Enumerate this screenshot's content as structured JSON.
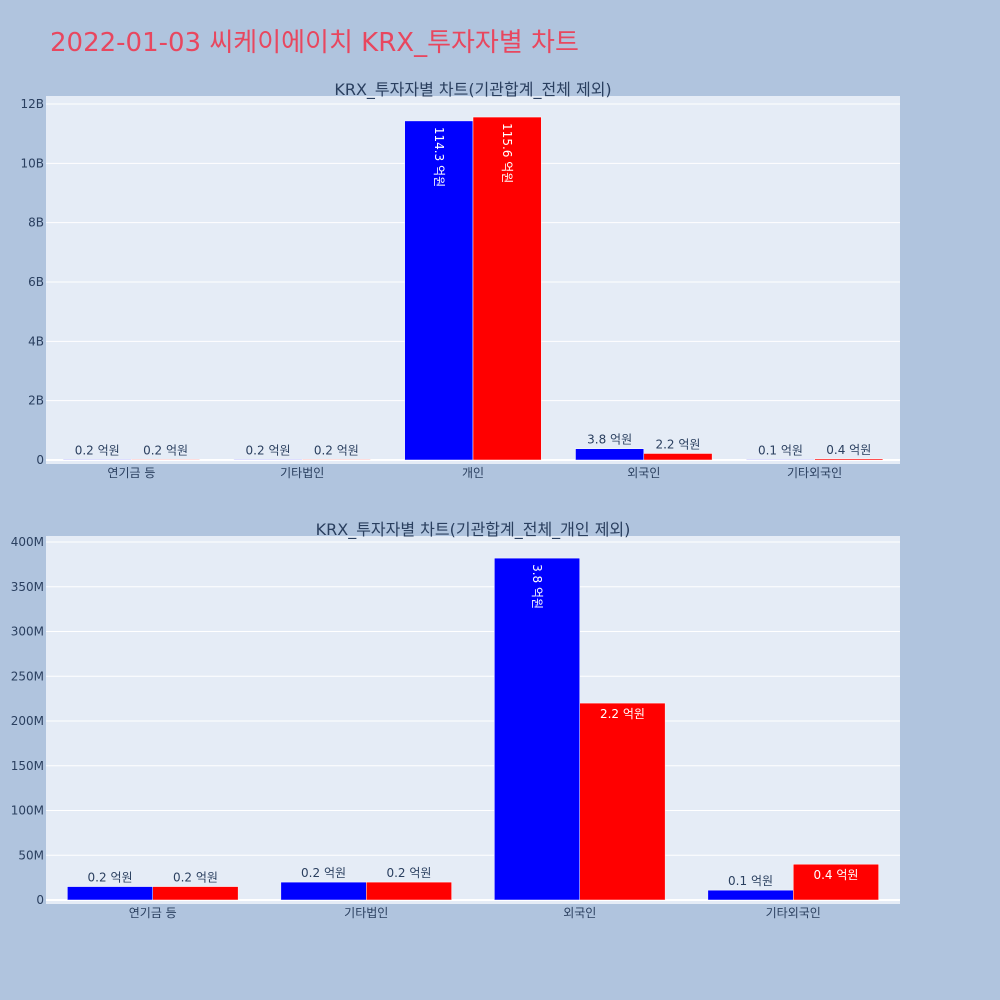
{
  "page": {
    "title": "2022-01-03 씨케이에이치 KRX_투자자별 차트",
    "background": "#b0c4de",
    "title_color": "#e8475f"
  },
  "chart_data": [
    {
      "type": "bar",
      "title": "KRX_투자자별 차트(기관합계_전체 제외)",
      "categories": [
        "연기금 등",
        "기타법인",
        "개인",
        "외국인",
        "기타외국인"
      ],
      "series": [
        {
          "color": "#0000ff",
          "values": [
            15000000,
            20000000,
            11430000000,
            380000000,
            12000000
          ],
          "labels": [
            "0.2 억원",
            "0.2 억원",
            "114.3 억원",
            "3.8 억원",
            "0.1 억원"
          ]
        },
        {
          "color": "#ff0000",
          "values": [
            15000000,
            20000000,
            11560000000,
            220000000,
            40000000
          ],
          "labels": [
            "0.2 억원",
            "0.2 억원",
            "115.6 억원",
            "2.2 억원",
            "0.4 억원"
          ]
        }
      ],
      "yticks": [
        0,
        2000000000,
        4000000000,
        6000000000,
        8000000000,
        10000000000,
        12000000000
      ],
      "ytick_labels": [
        "0",
        "2B",
        "4B",
        "6B",
        "8B",
        "10B",
        "12B"
      ],
      "ylim": [
        0,
        12000000000
      ],
      "xlabel": "",
      "ylabel": "",
      "grid": true
    },
    {
      "type": "bar",
      "title": "KRX_투자자별 차트(기관합계_전체_개인 제외)",
      "categories": [
        "연기금 등",
        "기타법인",
        "외국인",
        "기타외국인"
      ],
      "series": [
        {
          "color": "#0000ff",
          "values": [
            15000000,
            20000000,
            382000000,
            11000000
          ],
          "labels": [
            "0.2 억원",
            "0.2 억원",
            "3.8 억원",
            "0.1 억원"
          ]
        },
        {
          "color": "#ff0000",
          "values": [
            15000000,
            20000000,
            220000000,
            40000000
          ],
          "labels": [
            "0.2 억원",
            "0.2 억원",
            "2.2 억원",
            "0.4 억원"
          ]
        }
      ],
      "yticks": [
        0,
        50000000,
        100000000,
        150000000,
        200000000,
        250000000,
        300000000,
        350000000,
        400000000
      ],
      "ytick_labels": [
        "0",
        "50M",
        "100M",
        "150M",
        "200M",
        "250M",
        "300M",
        "350M",
        "400M"
      ],
      "ylim": [
        0,
        400000000
      ],
      "xlabel": "",
      "ylabel": "",
      "grid": true
    }
  ]
}
